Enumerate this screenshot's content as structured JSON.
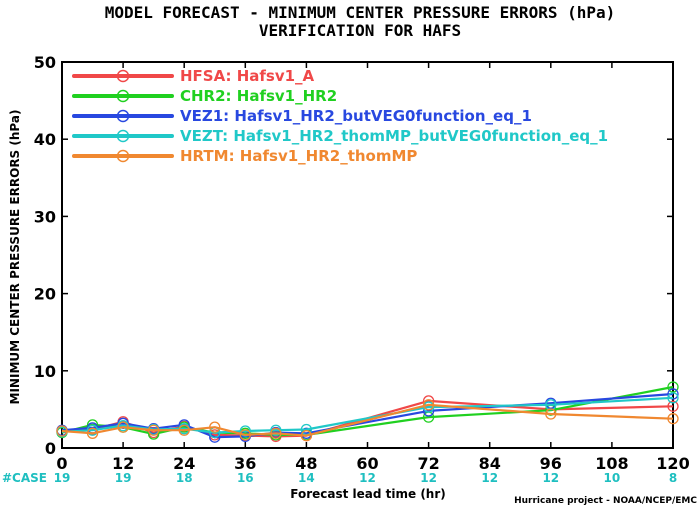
{
  "chart_data": {
    "type": "line",
    "title": "MODEL FORECAST - MINIMUM CENTER PRESSURE ERRORS (hPa)",
    "subtitle": "VERIFICATION FOR HAFS",
    "xlabel": "Forecast lead time (hr)",
    "ylabel": "MINIMUM CENTER PRESSURE ERRORS (hPa)",
    "xlim": [
      0,
      120
    ],
    "ylim": [
      0,
      50
    ],
    "x_ticks": [
      0,
      12,
      24,
      36,
      48,
      60,
      72,
      84,
      96,
      108,
      120
    ],
    "y_ticks": [
      0,
      10,
      20,
      30,
      40,
      50
    ],
    "grid": false,
    "legend_position": "top-left",
    "case_label": "#CASE",
    "case_counts": [
      {
        "x": 0,
        "n": "19"
      },
      {
        "x": 12,
        "n": "19"
      },
      {
        "x": 24,
        "n": "18"
      },
      {
        "x": 36,
        "n": "16"
      },
      {
        "x": 48,
        "n": "14"
      },
      {
        "x": 60,
        "n": "12"
      },
      {
        "x": 72,
        "n": "12"
      },
      {
        "x": 84,
        "n": "12"
      },
      {
        "x": 96,
        "n": "12"
      },
      {
        "x": 108,
        "n": "10"
      },
      {
        "x": 120,
        "n": "8"
      }
    ],
    "credit": "Hurricane project - NOAA/NCEP/EMC",
    "series": [
      {
        "name": "HFSA: Hafsv1_A",
        "color": "#f04848",
        "x": [
          0,
          6,
          12,
          18,
          24,
          30,
          36,
          42,
          48,
          72,
          96,
          120
        ],
        "y": [
          2.2,
          2.4,
          3.4,
          2.0,
          2.8,
          1.7,
          1.6,
          1.5,
          1.6,
          6.1,
          5.0,
          5.4
        ]
      },
      {
        "name": "CHR2: Hafsv1_HR2",
        "color": "#20d020",
        "x": [
          0,
          6,
          12,
          18,
          24,
          30,
          36,
          42,
          48,
          72,
          96,
          120
        ],
        "y": [
          2.0,
          3.0,
          2.7,
          1.8,
          2.7,
          2.0,
          1.9,
          1.7,
          1.7,
          4.0,
          4.9,
          7.9
        ]
      },
      {
        "name": "VEZ1: Hafsv1_HR2_butVEG0function_eq_1",
        "color": "#2848e0",
        "x": [
          0,
          6,
          12,
          18,
          24,
          30,
          36,
          42,
          48,
          72,
          96,
          120
        ],
        "y": [
          2.3,
          2.6,
          3.2,
          2.5,
          3.0,
          1.4,
          1.5,
          2.0,
          1.9,
          4.8,
          5.8,
          7.0
        ]
      },
      {
        "name": "VEZT: Hafsv1_HR2_thomMP_butVEG0function_eq_1",
        "color": "#20c8c8",
        "x": [
          0,
          6,
          12,
          18,
          24,
          30,
          36,
          42,
          48,
          72,
          96,
          120
        ],
        "y": [
          2.1,
          2.3,
          2.9,
          2.4,
          2.5,
          2.0,
          2.2,
          2.3,
          2.4,
          5.3,
          5.6,
          6.5
        ]
      },
      {
        "name": "HRTM: Hafsv1_HR2_thomMP",
        "color": "#f08830",
        "x": [
          0,
          6,
          12,
          18,
          24,
          30,
          36,
          42,
          48,
          72,
          96,
          120
        ],
        "y": [
          2.2,
          1.9,
          2.7,
          2.3,
          2.3,
          2.7,
          1.7,
          1.9,
          1.6,
          5.6,
          4.4,
          3.8
        ]
      }
    ]
  }
}
